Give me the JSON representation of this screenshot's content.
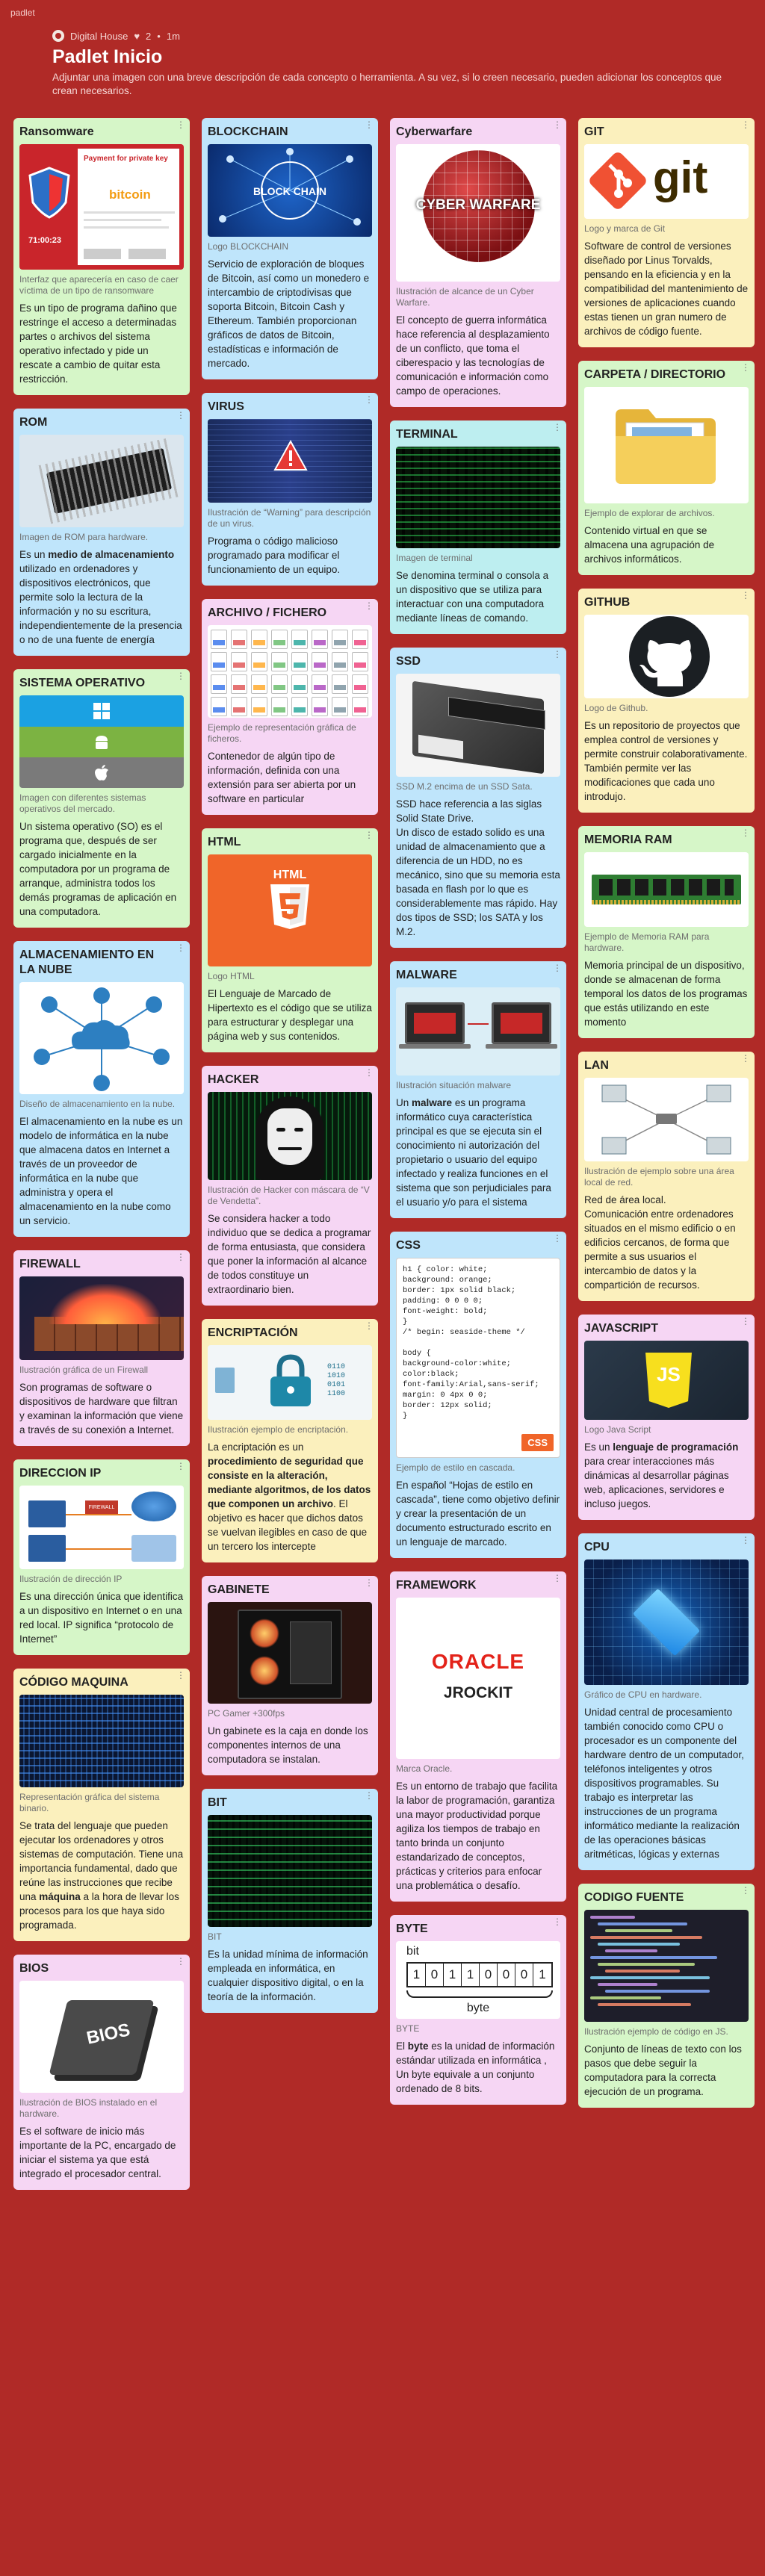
{
  "topbar": "padlet",
  "header": {
    "author": "Digital House",
    "likes": "2",
    "time": "1m",
    "title": "Padlet Inicio",
    "description": "Adjuntar una imagen con una breve descripción de cada concepto o herramienta. A su vez, si lo creen necesario, pueden adicionar los conceptos que crean necesarios."
  },
  "colors": {
    "background": "#b02a27",
    "green": "#d6f6c8",
    "blue": "#bfe5fb",
    "yellow": "#fbf0bd",
    "pink": "#f6d6f4",
    "teal": "#bdeef0"
  },
  "cards": {
    "ransomware": {
      "title": "Ransomware",
      "img_title": "Payment for private key",
      "img_text": "bitcoin",
      "img_timer": "71:00:23",
      "caption": "Interfaz que aparecería en caso de caer víctima de un tipo de ransomware",
      "body": "Es un tipo de programa dañino que restringe el acceso a determinadas partes o archivos del sistema operativo infectado y pide un rescate a cambio de quitar esta restricción."
    },
    "rom": {
      "title": "ROM",
      "caption": "Imagen de ROM para hardware.",
      "body_pre": "Es un ",
      "body_bold": "medio de almacenamiento",
      "body_post": " utilizado en ordenadores y dispositivos electrónicos, que permite solo la lectura de la información y no su escritura, independientemente de la presencia o no de una fuente de energía"
    },
    "so": {
      "title": "SISTEMA OPERATIVO",
      "caption": "Imagen con diferentes sistemas operativos del mercado.",
      "body": "Un sistema operativo (SO) es el programa que, después de ser cargado inicialmente en la computadora por un programa de arranque, administra todos los demás programas de aplicación en una computadora."
    },
    "nube": {
      "title": "ALMACENAMIENTO EN LA NUBE",
      "caption": "Diseño de almacenamiento en la nube.",
      "body": "El almacenamiento en la nube es un modelo de informática en la nube que almacena datos en Internet a través de un proveedor de informática en la nube que administra y opera el almacenamiento en la nube como un servicio."
    },
    "firewall": {
      "title": "FIREWALL",
      "caption": "Ilustración gráfica de un Firewall",
      "body": "Son programas de software o dispositivos de hardware que filtran y examinan la información que viene a través de su conexión a Internet."
    },
    "ip": {
      "title": "DIRECCION IP",
      "img_text": "FIREWALL",
      "caption": "Ilustración de dirección IP",
      "body": " Es una dirección única que identifica a un dispositivo en Internet o en una red local. IP significa “protocolo de Internet”"
    },
    "codigo_maquina": {
      "title": "CÓDIGO MAQUINA",
      "caption": "Representación gráfica del sistema binario.",
      "body_pre": "Se trata del lenguaje que pueden ejecutar los ordenadores y otros sistemas de computación. Tiene una importancia fundamental, dado que reúne las instrucciones que recibe una ",
      "body_bold": "máquina",
      "body_post": " a la hora de llevar los procesos para los que haya sido programada."
    },
    "bios": {
      "title": "BIOS",
      "img_text": "BIOS",
      "caption": "Ilustración de BIOS instalado en el hardware.",
      "body": "Es el software de inicio más importante de la PC, encargado de iniciar el sistema ya que está integrado el procesador central."
    },
    "blockchain": {
      "title": "BLOCKCHAIN",
      "img_text": "BLOCK CHAIN",
      "caption": "Logo BLOCKCHAIN",
      "body": "Servicio de exploración de bloques de Bitcoin, así como un monedero e intercambio de criptodivisas que soporta Bitcoin, Bitcoin Cash y Ethereum. También proporcionan gráficos de datos de Bitcoin, estadísticas e información de mercado."
    },
    "virus": {
      "title": "VIRUS",
      "caption": "Ilustración de “Warning” para descripción de un virus.",
      "body": "Programa o código malicioso programado para modificar el funcionamiento de un equipo."
    },
    "archivo": {
      "title": "ARCHIVO / FICHERO",
      "caption": "Ejemplo de representación gráfica de ficheros.",
      "body": "Contenedor de algún tipo de información, definida con una extensión para ser abierta por un software en particular"
    },
    "html": {
      "title": "HTML",
      "img_text": "HTML",
      "caption": "Logo HTML",
      "body": "El Lenguaje de Marcado de Hipertexto es el código que se utiliza para estructurar y desplegar una página web y sus contenidos."
    },
    "hacker": {
      "title": "HACKER",
      "caption": "Ilustración de Hacker con máscara de “V de Vendetta”.",
      "body": "Se  considera hacker a todo individuo que se dedica a programar de forma entusiasta, que considera que poner la información al alcance de todos constituye un extraordinario bien."
    },
    "encriptacion": {
      "title": "ENCRIPTACIÓN",
      "caption": "Ilustración ejemplo de encriptación.",
      "body_pre": "La encriptación es un ",
      "body_bold": "procedimiento de seguridad que consiste en la alteración, mediante algoritmos, de los datos que componen un archivo",
      "body_post": ". El objetivo es hacer que dichos datos se vuelvan ilegibles en caso de que un tercero los intercepte"
    },
    "gabinete": {
      "title": "GABINETE",
      "caption": "PC Gamer +300fps",
      "body": "Un gabinete es la caja en donde los componentes internos de una computadora se instalan."
    },
    "bit": {
      "title": "BIT",
      "caption": "BIT",
      "body": "Es la unidad mínima de información empleada en informática, en cualquier dispositivo digital, o en la teoría de la información."
    },
    "cyberwarfare": {
      "title": "Cyberwarfare",
      "img_text": "CYBER WARFARE",
      "caption": "Ilustración de alcance de un Cyber Warfare.",
      "body": "El concepto de guerra informática hace referencia al desplazamiento de un conflicto, que toma el ciberespacio y las tecnologías de comunicación e información como campo de operaciones."
    },
    "terminal": {
      "title": "TERMINAL",
      "caption": "Imagen de terminal",
      "body": "Se denomina terminal o consola a un dispositivo que se utiliza para interactuar con una computadora mediante líneas de comando."
    },
    "ssd": {
      "title": "SSD",
      "caption": "SSD M.2 encima de un SSD Sata.",
      "body": "SSD hace referencia a las siglas Solid State Drive.\nUn disco de estado solido es una unidad de almacenamiento que a diferencia de un HDD, no es mecánico, sino que su memoria esta basada en flash por lo que es considerablemente mas rápido. Hay dos tipos de SSD; los SATA y los M.2."
    },
    "malware": {
      "title": "MALWARE",
      "caption": "Ilustración situación malware",
      "body_pre": "Un ",
      "body_bold": "malware",
      "body_post": " es un programa informático cuya característica principal es que se ejecuta sin el conocimiento ni autorización del propietario o usuario del equipo infectado y realiza funciones en el sistema que son perjudiciales para el usuario y/o para el sistema"
    },
    "css": {
      "title": "CSS",
      "code": "h1 { color: white;\nbackground: orange;\nborder: 1px solid black;\npadding: 0 0 0 0;\nfont-weight: bold;\n}\n/* begin: seaside-theme */\n\nbody {\nbackground-color:white;\ncolor:black;\nfont-family:Arial,sans-serif;\nmargin: 0 4px 0 0;\nborder: 12px solid;\n}",
      "badge": "CSS",
      "caption": "Ejemplo de estilo en cascada.",
      "body": "En español “Hojas de estilo en cascada”, tiene como objetivo definir y crear la presentación de un documento estructurado escrito en un lenguaje de marcado."
    },
    "framework": {
      "title": "FRAMEWORK",
      "img_text1": "ORACLE",
      "img_text2": "JROCKIT",
      "caption": "Marca Oracle.",
      "body": "Es un entorno de trabajo que facilita la labor de programación, garantiza una mayor productividad porque agiliza los tiempos de trabajo en tanto brinda un conjunto estandarizado de conceptos, prácticas y criterios para enfocar una problemática o desafío."
    },
    "byte": {
      "title": "BYTE",
      "img_bit": "bit",
      "img_bits": [
        "1",
        "0",
        "1",
        "1",
        "0",
        "0",
        "0",
        "1"
      ],
      "img_byte": "byte",
      "caption": "BYTE",
      "body_pre": "El ",
      "body_bold": "byte",
      "body_post": " es la unidad de información estándar utilizada en informática , Un byte equivale a un conjunto ordenado de 8 bits."
    },
    "git": {
      "title": "GIT",
      "img_text": "git",
      "caption": "Logo y marca de Git",
      "body": "Software de control de versiones diseñado por Linus Torvalds, pensando en la eficiencia y en la compatibilidad del mantenimiento de versiones de aplicaciones cuando estas tienen un gran numero de archivos de código fuente."
    },
    "carpeta": {
      "title": "CARPETA / DIRECTORIO",
      "caption": "Ejemplo de explorar de archivos.",
      "body": "Contenido virtual en que se almacena una agrupación de archivos informáticos."
    },
    "github": {
      "title": "GITHUB",
      "caption": "Logo de Github.",
      "body": "Es un repositorio de proyectos que emplea control de versiones y permite construir colaborativamente. También permite ver las modificaciones que cada uno introdujo."
    },
    "ram": {
      "title": "MEMORIA RAM",
      "caption": "Ejemplo de Memoria RAM para hardware.",
      "body": "Memoria principal de un dispositivo, donde se almacenan de forma temporal los datos de los programas que estás utilizando en este momento"
    },
    "lan": {
      "title": "LAN",
      "caption": "Ilustración de ejemplo sobre una área local de red.",
      "body": "Red de área local.\nComunicación entre ordenadores situados en el mismo edificio o en edificios cercanos, de forma que permite a sus usuarios el intercambio de datos y la compartición de recursos."
    },
    "javascript": {
      "title": "JAVASCRIPT",
      "img_text": "JS",
      "caption": "Logo Java Script",
      "body_pre": "Es un ",
      "body_bold": "lenguaje de programación",
      "body_post": " para crear interacciones más dinámicas al desarrollar páginas web, aplicaciones, servidores e incluso juegos."
    },
    "cpu": {
      "title": "CPU",
      "caption": "Gráfico de CPU en hardware.",
      "body": "Unidad central de procesamiento también conocido como CPU o procesador es un componente del hardware dentro de un computador, teléfonos inteligentes y otros dispositivos programables. Su trabajo es interpretar las instrucciones de un programa informático mediante la realización de las operaciones básicas aritméticas, lógicas y externas"
    },
    "codigo_fuente": {
      "title": "CODIGO FUENTE",
      "caption": "Ilustración ejemplo de código en JS.",
      "body": "Conjunto de líneas de texto con los pasos que debe seguir la computadora para la correcta ejecución de un programa."
    }
  }
}
